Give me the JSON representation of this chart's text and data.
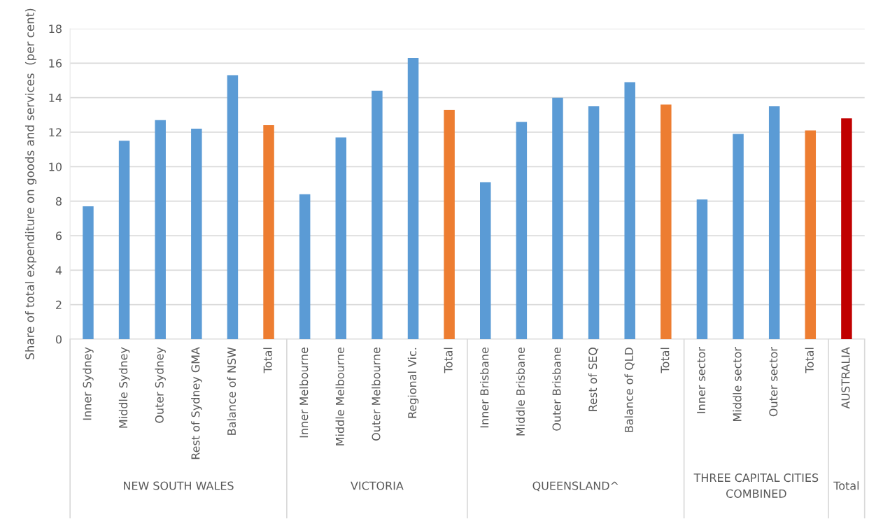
{
  "chart_data": {
    "type": "bar",
    "ylabel": "Share of total expenditure on goods and services  (per cent)",
    "categories": [
      "Inner Sydney",
      "Middle Sydney",
      "Outer Sydney",
      "Rest of Sydney GMA",
      "Balance of NSW",
      "Total",
      "Inner Melbourne",
      "Middle Melbourne",
      "Outer Melbourne",
      "Regional Vic.",
      "Total",
      "Inner Brisbane",
      "Middle Brisbane",
      "Outer Brisbane",
      "Rest of SEQ",
      "Balance of QLD",
      "Total",
      "Inner sector",
      "Middle sector",
      "Outer sector",
      "Total",
      "AUSTRALIA"
    ],
    "values": [
      7.7,
      11.5,
      12.7,
      12.2,
      15.3,
      12.4,
      8.4,
      11.7,
      14.4,
      16.3,
      13.3,
      9.1,
      12.6,
      14.0,
      13.5,
      14.9,
      13.6,
      8.1,
      11.9,
      13.5,
      12.1,
      12.8
    ],
    "colors": [
      "#5b9bd5",
      "#5b9bd5",
      "#5b9bd5",
      "#5b9bd5",
      "#5b9bd5",
      "#ed7d31",
      "#5b9bd5",
      "#5b9bd5",
      "#5b9bd5",
      "#5b9bd5",
      "#ed7d31",
      "#5b9bd5",
      "#5b9bd5",
      "#5b9bd5",
      "#5b9bd5",
      "#5b9bd5",
      "#ed7d31",
      "#5b9bd5",
      "#5b9bd5",
      "#5b9bd5",
      "#ed7d31",
      "#c00000"
    ],
    "ylim": [
      0,
      18
    ],
    "yticks": [
      0,
      2,
      4,
      6,
      8,
      10,
      12,
      14,
      16,
      18
    ],
    "grid": "y",
    "legend": false,
    "annotations": [
      "NEW SOUTH WALES",
      "VICTORIA",
      "QUEENSLAND^",
      "THREE CAPITAL CITIES\nCOMBINED",
      "Total"
    ]
  }
}
